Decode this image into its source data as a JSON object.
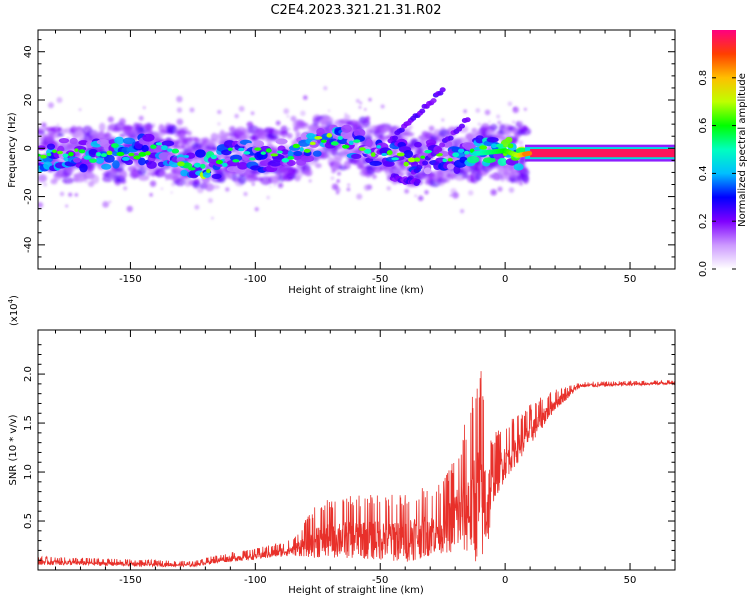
{
  "figure": {
    "title": "C2E4.2023.321.21.31.R02"
  },
  "chart_data": [
    {
      "type": "heatmap",
      "xlabel": "Height of straight line (km)",
      "ylabel": "Frequency (Hz)",
      "xlim": [
        -187,
        68
      ],
      "ylim": [
        -50,
        49
      ],
      "xticks": [
        -150,
        -100,
        -50,
        0,
        50
      ],
      "yticks": [
        -40,
        -20,
        0,
        20,
        40
      ],
      "colorbar": {
        "label": "Normalized spectral amplitude",
        "range": [
          0,
          1
        ],
        "ticks": [
          "0.0",
          "0.2",
          "0.4",
          "0.6",
          "0.8"
        ],
        "colormap": [
          "#ffffff",
          "#cc99ff",
          "#7f00ff",
          "#0000ff",
          "#00bfff",
          "#00ffbf",
          "#00ff00",
          "#bfff00",
          "#ffbf00",
          "#ff3f00",
          "#ff0080"
        ]
      },
      "ridge": [
        {
          "x": -185,
          "f": -3,
          "amp": 0.35
        },
        {
          "x": -160,
          "f": -2,
          "amp": 0.35
        },
        {
          "x": -135,
          "f": -1,
          "amp": 0.32
        },
        {
          "x": -125,
          "f": -6,
          "amp": 0.55
        },
        {
          "x": -120,
          "f": -8,
          "amp": 0.6
        },
        {
          "x": -110,
          "f": -3,
          "amp": 0.3
        },
        {
          "x": -90,
          "f": -3,
          "amp": 0.3
        },
        {
          "x": -70,
          "f": 4,
          "amp": 0.4
        },
        {
          "x": -55,
          "f": 0,
          "amp": 0.3
        },
        {
          "x": -40,
          "f": -4,
          "amp": 0.28
        },
        {
          "x": -20,
          "f": -3,
          "amp": 0.3
        },
        {
          "x": -10,
          "f": -2,
          "amp": 0.5
        },
        {
          "x": 0,
          "f": -1,
          "amp": 0.6
        },
        {
          "x": 5,
          "f": -3,
          "amp": 0.7
        },
        {
          "x": 10,
          "f": -2,
          "amp": 0.95
        },
        {
          "x": 68,
          "f": -2,
          "amp": 0.95
        }
      ],
      "branches": [
        {
          "from": [
            -45,
            4
          ],
          "to": [
            -25,
            24
          ]
        },
        {
          "from": [
            -40,
            -14
          ],
          "to": [
            -15,
            12
          ]
        },
        {
          "from": [
            -45,
            -12
          ],
          "to": [
            -35,
            -14
          ]
        }
      ]
    },
    {
      "type": "line",
      "xlabel": "Height of straight line (km)",
      "ylabel": "SNR (10 * v/v)",
      "yscale_label": "(x10",
      "yscale_exp": "4",
      "yscale_close": ")",
      "xlim": [
        -187,
        68
      ],
      "ylim": [
        0,
        2.45
      ],
      "xticks": [
        -150,
        -100,
        -50,
        0,
        50
      ],
      "yticks": [
        "0.5",
        "1.0",
        "1.5",
        "2.0"
      ],
      "series": [
        {
          "color": "#e8302a",
          "envelope": [
            {
              "x": -187,
              "base": 0.08,
              "amp": 0.06
            },
            {
              "x": -150,
              "base": 0.06,
              "amp": 0.05
            },
            {
              "x": -125,
              "base": 0.05,
              "amp": 0.04
            },
            {
              "x": -115,
              "base": 0.1,
              "amp": 0.06
            },
            {
              "x": -100,
              "base": 0.14,
              "amp": 0.08
            },
            {
              "x": -85,
              "base": 0.2,
              "amp": 0.12
            },
            {
              "x": -75,
              "base": 0.3,
              "amp": 0.4
            },
            {
              "x": -60,
              "base": 0.32,
              "amp": 0.45
            },
            {
              "x": -40,
              "base": 0.3,
              "amp": 0.5
            },
            {
              "x": -25,
              "base": 0.4,
              "amp": 0.5
            },
            {
              "x": -15,
              "base": 0.6,
              "amp": 1.0
            },
            {
              "x": -10,
              "base": 0.7,
              "amp": 1.5
            },
            {
              "x": -7,
              "base": 0.6,
              "amp": 1.0
            },
            {
              "x": -5,
              "base": 0.9,
              "amp": 0.5
            },
            {
              "x": 0,
              "base": 1.1,
              "amp": 0.4
            },
            {
              "x": 10,
              "base": 1.4,
              "amp": 0.3
            },
            {
              "x": 20,
              "base": 1.7,
              "amp": 0.15
            },
            {
              "x": 30,
              "base": 1.88,
              "amp": 0.04
            },
            {
              "x": 68,
              "base": 1.91,
              "amp": 0.03
            }
          ]
        }
      ]
    }
  ]
}
